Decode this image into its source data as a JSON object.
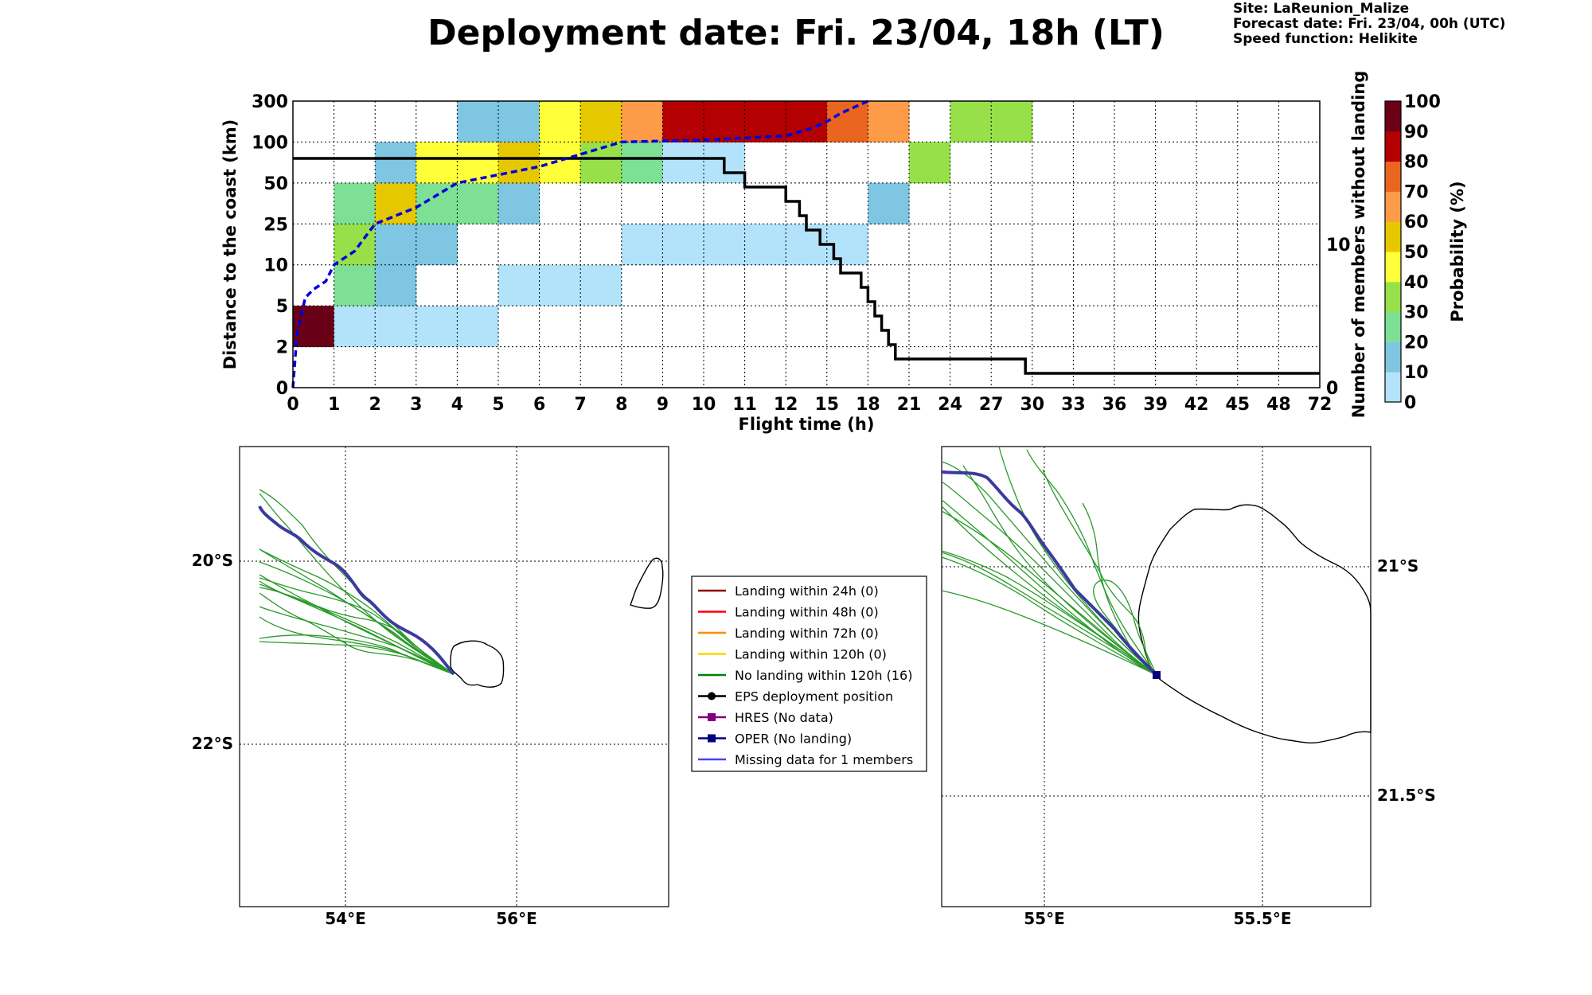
{
  "header": {
    "title": "Deployment date: Fri. 23/04, 18h (LT)",
    "site": "Site: LaReunion_Malize",
    "forecast": "Forecast date: Fri. 23/04, 00h (UTC)",
    "speed": "Speed function: Helikite"
  },
  "chart_data": [
    {
      "type": "heatmap",
      "xlabel": "Flight time (h)",
      "ylabel": "Distance to the coast (km)",
      "ylabel_right": "Number of members without landing",
      "colorbar_label": "Probability (%)",
      "x_ticks": [
        "0",
        "1",
        "2",
        "3",
        "4",
        "5",
        "6",
        "7",
        "8",
        "9",
        "10",
        "11",
        "12",
        "15",
        "18",
        "21",
        "24",
        "27",
        "30",
        "33",
        "36",
        "39",
        "42",
        "45",
        "48",
        "72"
      ],
      "y_ticks": [
        "0",
        "2",
        "5",
        "10",
        "25",
        "50",
        "100",
        "300"
      ],
      "y_right_ticks": [
        "0",
        "10"
      ],
      "colorbar_ticks": [
        "0",
        "10",
        "20",
        "30",
        "40",
        "50",
        "60",
        "70",
        "80",
        "90",
        "100"
      ],
      "colorbar_colors": [
        "#b3e3fa",
        "#7ec6e2",
        "#7ee094",
        "#97e04a",
        "#ffff3a",
        "#e6c800",
        "#fd9b48",
        "#e96520",
        "#b40000",
        "#6a0015"
      ],
      "cells": [
        {
          "col": 0,
          "row": 1,
          "p": 95
        },
        {
          "col": 1,
          "row": 1,
          "p": 5
        },
        {
          "col": 2,
          "row": 1,
          "p": 5
        },
        {
          "col": 3,
          "row": 1,
          "p": 5
        },
        {
          "col": 4,
          "row": 1,
          "p": 5
        },
        {
          "col": 1,
          "row": 2,
          "p": 25
        },
        {
          "col": 2,
          "row": 2,
          "p": 15
        },
        {
          "col": 5,
          "row": 2,
          "p": 5
        },
        {
          "col": 6,
          "row": 2,
          "p": 5
        },
        {
          "col": 7,
          "row": 2,
          "p": 5
        },
        {
          "col": 1,
          "row": 3,
          "p": 35
        },
        {
          "col": 2,
          "row": 3,
          "p": 15
        },
        {
          "col": 3,
          "row": 3,
          "p": 15
        },
        {
          "col": 8,
          "row": 3,
          "p": 5
        },
        {
          "col": 9,
          "row": 3,
          "p": 5
        },
        {
          "col": 10,
          "row": 3,
          "p": 5
        },
        {
          "col": 11,
          "row": 3,
          "p": 5
        },
        {
          "col": 12,
          "row": 3,
          "p": 5
        },
        {
          "col": 13,
          "row": 3,
          "p": 5
        },
        {
          "col": 1,
          "row": 4,
          "p": 25
        },
        {
          "col": 2,
          "row": 4,
          "p": 55
        },
        {
          "col": 3,
          "row": 4,
          "p": 25
        },
        {
          "col": 4,
          "row": 4,
          "p": 25
        },
        {
          "col": 5,
          "row": 4,
          "p": 15
        },
        {
          "col": 14,
          "row": 4,
          "p": 15
        },
        {
          "col": 2,
          "row": 5,
          "p": 15
        },
        {
          "col": 3,
          "row": 5,
          "p": 45
        },
        {
          "col": 4,
          "row": 5,
          "p": 45
        },
        {
          "col": 5,
          "row": 5,
          "p": 55
        },
        {
          "col": 6,
          "row": 5,
          "p": 45
        },
        {
          "col": 7,
          "row": 5,
          "p": 35
        },
        {
          "col": 8,
          "row": 5,
          "p": 25
        },
        {
          "col": 9,
          "row": 5,
          "p": 5
        },
        {
          "col": 10,
          "row": 5,
          "p": 5
        },
        {
          "col": 15,
          "row": 5,
          "p": 35
        },
        {
          "col": 4,
          "row": 6,
          "p": 15
        },
        {
          "col": 5,
          "row": 6,
          "p": 15
        },
        {
          "col": 6,
          "row": 6,
          "p": 45
        },
        {
          "col": 7,
          "row": 6,
          "p": 55
        },
        {
          "col": 8,
          "row": 6,
          "p": 65
        },
        {
          "col": 9,
          "row": 6,
          "p": 85
        },
        {
          "col": 10,
          "row": 6,
          "p": 85
        },
        {
          "col": 11,
          "row": 6,
          "p": 85
        },
        {
          "col": 12,
          "row": 6,
          "p": 85
        },
        {
          "col": 13,
          "row": 6,
          "p": 75
        },
        {
          "col": 14,
          "row": 6,
          "p": 65
        },
        {
          "col": 16,
          "row": 6,
          "p": 35
        },
        {
          "col": 17,
          "row": 6,
          "p": 35
        }
      ],
      "members_without_landing_steps": [
        [
          0,
          16
        ],
        [
          10.5,
          16
        ],
        [
          10.5,
          15
        ],
        [
          11,
          15
        ],
        [
          11,
          14
        ],
        [
          12,
          14
        ],
        [
          12,
          13
        ],
        [
          13,
          13
        ],
        [
          13,
          12
        ],
        [
          13.5,
          12
        ],
        [
          13.5,
          11
        ],
        [
          14.5,
          11
        ],
        [
          14.5,
          10
        ],
        [
          15.5,
          10
        ],
        [
          15.5,
          9
        ],
        [
          16,
          9
        ],
        [
          16,
          8
        ],
        [
          17.5,
          8
        ],
        [
          17.5,
          7
        ],
        [
          18,
          7
        ],
        [
          18,
          6
        ],
        [
          18.5,
          6
        ],
        [
          18.5,
          5
        ],
        [
          19,
          5
        ],
        [
          19,
          4
        ],
        [
          19.5,
          4
        ],
        [
          19.5,
          3
        ],
        [
          20,
          3
        ],
        [
          20,
          2
        ],
        [
          21,
          2
        ],
        [
          21,
          2
        ],
        [
          29.5,
          2
        ],
        [
          29.5,
          1
        ],
        [
          72,
          1
        ]
      ],
      "median_distance_km": [
        [
          0,
          0
        ],
        [
          0.1,
          3
        ],
        [
          0.3,
          6
        ],
        [
          0.5,
          7
        ],
        [
          0.8,
          8
        ],
        [
          1,
          10
        ],
        [
          1.5,
          15
        ],
        [
          2,
          25
        ],
        [
          3,
          35
        ],
        [
          4,
          50
        ],
        [
          5,
          60
        ],
        [
          6,
          70
        ],
        [
          7,
          85
        ],
        [
          8,
          100
        ],
        [
          9,
          105
        ],
        [
          10,
          110
        ],
        [
          11,
          120
        ],
        [
          12,
          130
        ],
        [
          14,
          170
        ],
        [
          15,
          200
        ],
        [
          16,
          240
        ],
        [
          17,
          270
        ],
        [
          18,
          300
        ]
      ]
    }
  ],
  "legend": {
    "items": [
      {
        "label": "Landing within 24h (0)",
        "color": "#8b0000"
      },
      {
        "label": "Landing within 48h (0)",
        "color": "#ff0000"
      },
      {
        "label": "Landing within 72h (0)",
        "color": "#ff8c00"
      },
      {
        "label": "Landing within 120h (0)",
        "color": "#ffd700"
      },
      {
        "label": "No landing within 120h (16)",
        "color": "#008000"
      },
      {
        "label": "EPS deployment position",
        "color": "#000000"
      },
      {
        "label": "HRES (No data)",
        "color": "#800080"
      },
      {
        "label": "OPER (No landing)",
        "color": "#000080"
      },
      {
        "label": "Missing data for 1 members",
        "color": "#4444ff"
      }
    ]
  },
  "map_left": {
    "lat_labels": [
      "20°S",
      "22°S"
    ],
    "lon_labels": [
      "54°E",
      "56°E"
    ]
  },
  "map_right": {
    "lat_labels": [
      "21°S",
      "21.5°S"
    ],
    "lon_labels": [
      "55°E",
      "55.5°E"
    ]
  }
}
